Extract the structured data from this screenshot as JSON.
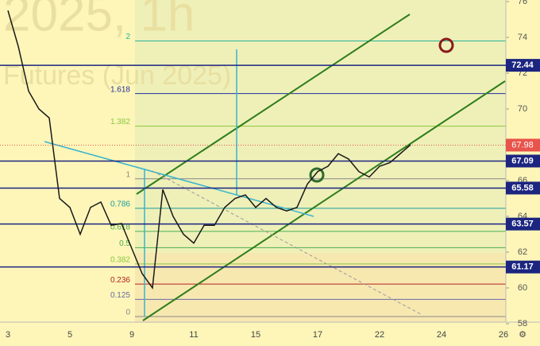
{
  "chart_data": {
    "type": "line",
    "watermark": [
      "2025, 1h",
      "Futures (Jun 2025)"
    ],
    "categories": [
      "3",
      null,
      null,
      null,
      null,
      null,
      "5",
      null,
      null,
      null,
      null,
      null,
      "9",
      null,
      null,
      null,
      null,
      null,
      "11",
      null,
      null,
      null,
      null,
      null,
      "15",
      null,
      null,
      null,
      null,
      null,
      "17",
      null,
      null,
      null,
      null,
      null,
      "22",
      null,
      null,
      null,
      null,
      null,
      "24",
      null,
      null,
      null,
      null,
      null,
      "26"
    ],
    "values": [
      75.5,
      73.5,
      71,
      70,
      69.5,
      65,
      64.5,
      63,
      64.5,
      64.8,
      63.5,
      63.6,
      62.2,
      60.8,
      60,
      65.5,
      64,
      63,
      62.5,
      63.5,
      63.5,
      64.5,
      65,
      65.2,
      64.5,
      65,
      64.5,
      64.3,
      64.5,
      65.8,
      66.5,
      66.8,
      67.5,
      67.2,
      66.5,
      66.2,
      66.8,
      67,
      67.5,
      68,
      null,
      null,
      null,
      null,
      null,
      null,
      null,
      null,
      null
    ],
    "color": "#1a1a1a",
    "ylim": [
      58,
      76
    ],
    "yticks": [
      58,
      60,
      62,
      64,
      66,
      68,
      70,
      72,
      74,
      76
    ],
    "levels": [
      72.44,
      67.09,
      65.58,
      63.57,
      61.17
    ],
    "level_color": "#1c2580",
    "last_price": 67.98,
    "last_color": "#e8544b",
    "fib_range": [
      58.4,
      66.1
    ],
    "fib_levels": [
      2,
      1.618,
      1.382,
      1,
      0.786,
      0.618,
      0.5,
      0.382,
      0.236,
      0.125,
      0
    ],
    "fib_colors": [
      "#2bb39b",
      "#2330a0",
      "#8cc63f",
      "#888888",
      "#1a9c9c",
      "#4caf50",
      "#4caf50",
      "#8cc63f",
      "#b22222",
      "#6a6aa8",
      "#888888"
    ]
  }
}
